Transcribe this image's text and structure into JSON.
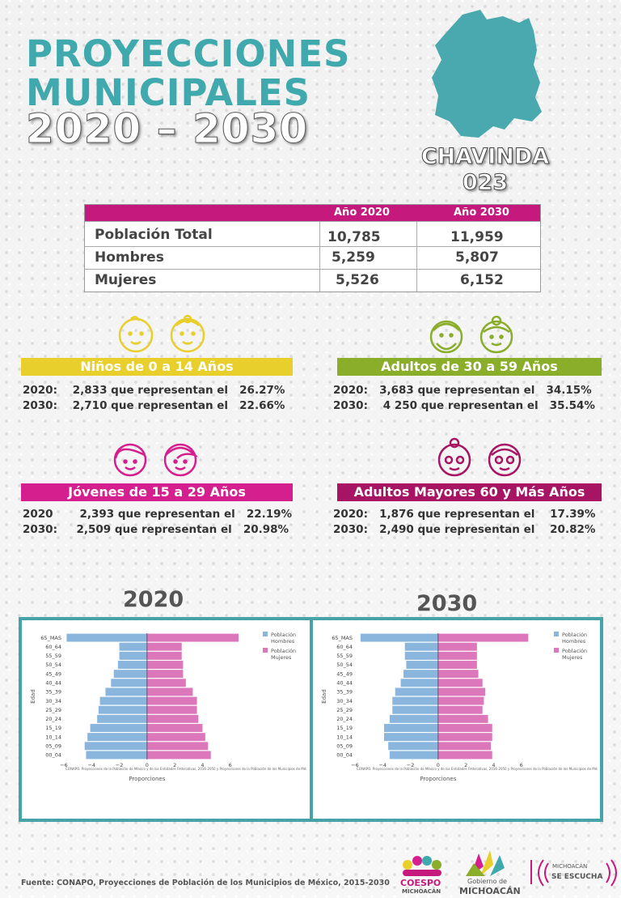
{
  "title": {
    "line1": "PROYECCIONES",
    "line2": "MUNICIPALES",
    "line3": "2020 – 2030"
  },
  "municipality": {
    "name": "CHAVINDA",
    "code": "023"
  },
  "population_table": {
    "headers": [
      "Año 2020",
      "Año 2030"
    ],
    "rows": [
      {
        "label": "Población Total",
        "y2020": "10,785",
        "y2030": "11,959"
      },
      {
        "label": "Hombres",
        "y2020": "5,259",
        "y2030": "5,807"
      },
      {
        "label": "Mujeres",
        "y2020": "5,526",
        "y2030": "6,152"
      }
    ]
  },
  "groups": {
    "ninos": {
      "title": "Niños de 0 a 14 Años",
      "color": "#e8cf2c",
      "lines": [
        "2020:    2,833 que representan el   26.27%",
        "2030:    2,710 que representan el   22.66%"
      ]
    },
    "adultos": {
      "title": "Adultos de 30 a 59 Años",
      "color": "#8aad2a",
      "lines": [
        "2020:   3,683 que representan el   34.15%",
        "2030:    4 250 que representan el   35.54%"
      ]
    },
    "jovenes": {
      "title": "Jóvenes de 15 a 29 Años",
      "color": "#d61f8e",
      "lines": [
        "2020       2,393 que representan el   22.19%",
        "2030:     2,509 que representan el   20.98%"
      ]
    },
    "mayores": {
      "title": "Adultos Mayores  60 y Más Años",
      "color": "#a61463",
      "lines": [
        "2020:   1,876 que representan el    17.39%",
        "2030:   2,490 que representan el    20.82%"
      ]
    }
  },
  "colors": {
    "teal": "#3fa9ad",
    "magenta": "#c5197d",
    "hombres": "#8ab6dd",
    "mujeres": "#dd77bb"
  },
  "chart_titles": [
    "2020",
    "2030"
  ],
  "chart_data": [
    {
      "type": "bar",
      "orientation": "horizontal",
      "title": "2020",
      "categories": [
        "00_04",
        "05_09",
        "10_14",
        "15_19",
        "20_24",
        "25_29",
        "30_34",
        "35_39",
        "40_44",
        "45_49",
        "50_54",
        "55_59",
        "60_64",
        "65_MAS"
      ],
      "series": [
        {
          "name": "Población Hombres",
          "values": [
            -4.4,
            -4.5,
            -4.3,
            -4.1,
            -3.6,
            -3.5,
            -3.4,
            -3.0,
            -2.6,
            -2.4,
            -2.1,
            -2.0,
            -2.0,
            -5.8
          ]
        },
        {
          "name": "Población Mujeres",
          "values": [
            4.6,
            4.4,
            4.2,
            4.0,
            3.7,
            3.6,
            3.6,
            3.3,
            2.8,
            2.6,
            2.6,
            2.5,
            2.5,
            6.6
          ]
        }
      ],
      "xlabel": "Proporciones",
      "ylabel": "Edad",
      "xlim": [
        -6,
        8
      ],
      "xticks": [
        "−6",
        "−4",
        "−2",
        "0",
        "2",
        "4",
        "6"
      ],
      "legend": "top-right",
      "note": "CONAPO. Proyecciones de la Población de México y de las Entidades Federativas, 2016-2050 y Proyecciones de la Población de los Municipios de Méxi"
    },
    {
      "type": "bar",
      "orientation": "horizontal",
      "title": "2030",
      "categories": [
        "00_04",
        "05_09",
        "10_14",
        "15_19",
        "20_24",
        "25_29",
        "30_34",
        "35_39",
        "40_44",
        "45_49",
        "50_54",
        "55_59",
        "60_64",
        "65_MAS"
      ],
      "series": [
        {
          "name": "Población Hombres",
          "values": [
            -3.5,
            -3.6,
            -3.9,
            -3.9,
            -3.5,
            -3.3,
            -3.3,
            -3.1,
            -2.7,
            -2.5,
            -2.3,
            -2.4,
            -2.4,
            -5.6
          ]
        },
        {
          "name": "Población Mujeres",
          "values": [
            3.9,
            3.8,
            3.9,
            3.9,
            3.6,
            3.2,
            3.3,
            3.4,
            3.2,
            2.9,
            2.8,
            2.8,
            2.8,
            6.5
          ]
        }
      ],
      "xlabel": "Proporciones",
      "ylabel": "Edad",
      "xlim": [
        -6,
        8
      ],
      "xticks": [
        "−6",
        "−4",
        "−2",
        "0",
        "2",
        "4",
        "6"
      ],
      "legend": "top-right",
      "note": "CONAPO. Proyecciones de la Población de México y de las Entidades Federativas, 2016-2050 y Proyecciones de la Población de los Municipios de Méxi"
    }
  ],
  "footer": "Fuente: CONAPO, Proyecciones de Población de los Municipios de México, 2015-2030",
  "logos": {
    "coespo": "COESPO",
    "coespo_sub": "MICHOACÁN",
    "gobierno": "Gobierno de",
    "gobierno_sub": "MICHOACÁN",
    "escucha1": "MICHOACÁN",
    "escucha2": "SE ESCUCHA"
  }
}
